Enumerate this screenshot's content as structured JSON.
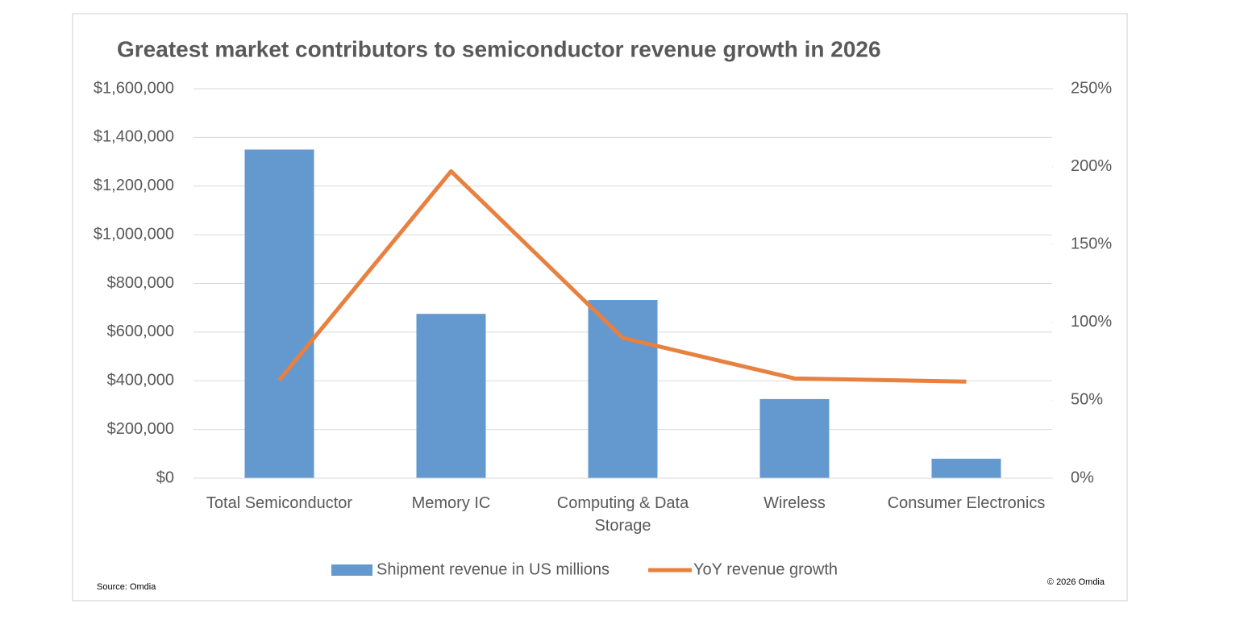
{
  "chart_data": {
    "type": "combo",
    "title": "Greatest market contributors to semiconductor revenue growth in 2026",
    "categories": [
      "Total Semiconductor",
      "Memory IC",
      "Computing & Data Storage",
      "Wireless",
      "Consumer Electronics"
    ],
    "series": [
      {
        "name": "Shipment revenue in US millions",
        "type": "bar",
        "color": "#6399cf",
        "values": [
          1350000,
          675000,
          732000,
          325000,
          80000
        ]
      },
      {
        "name": "YoY revenue growth",
        "type": "line",
        "axis": "y2",
        "color": "#e8803f",
        "values": [
          63,
          197,
          90,
          64,
          62
        ]
      }
    ],
    "ylim": [
      0,
      1600000
    ],
    "yticks": [
      {
        "value": 0,
        "label": "$0"
      },
      {
        "value": 200000,
        "label": "$200,000"
      },
      {
        "value": 400000,
        "label": "$400,000"
      },
      {
        "value": 600000,
        "label": "$600,000"
      },
      {
        "value": 800000,
        "label": "$800,000"
      },
      {
        "value": 1000000,
        "label": "$1,000,000"
      },
      {
        "value": 1200000,
        "label": "$1,200,000"
      },
      {
        "value": 1400000,
        "label": "$1,400,000"
      },
      {
        "value": 1600000,
        "label": "$1,600,000"
      }
    ],
    "y2lim": [
      0,
      250
    ],
    "y2ticks": [
      {
        "value": 0,
        "label": "0%"
      },
      {
        "value": 50,
        "label": "50%"
      },
      {
        "value": 100,
        "label": "100%"
      },
      {
        "value": 150,
        "label": "150%"
      },
      {
        "value": 200,
        "label": "200%"
      },
      {
        "value": 250,
        "label": "250%"
      }
    ],
    "grid": true,
    "legend": "bottom",
    "annotations": [
      "Source: Omdia",
      "© 2026 Omdia"
    ]
  }
}
